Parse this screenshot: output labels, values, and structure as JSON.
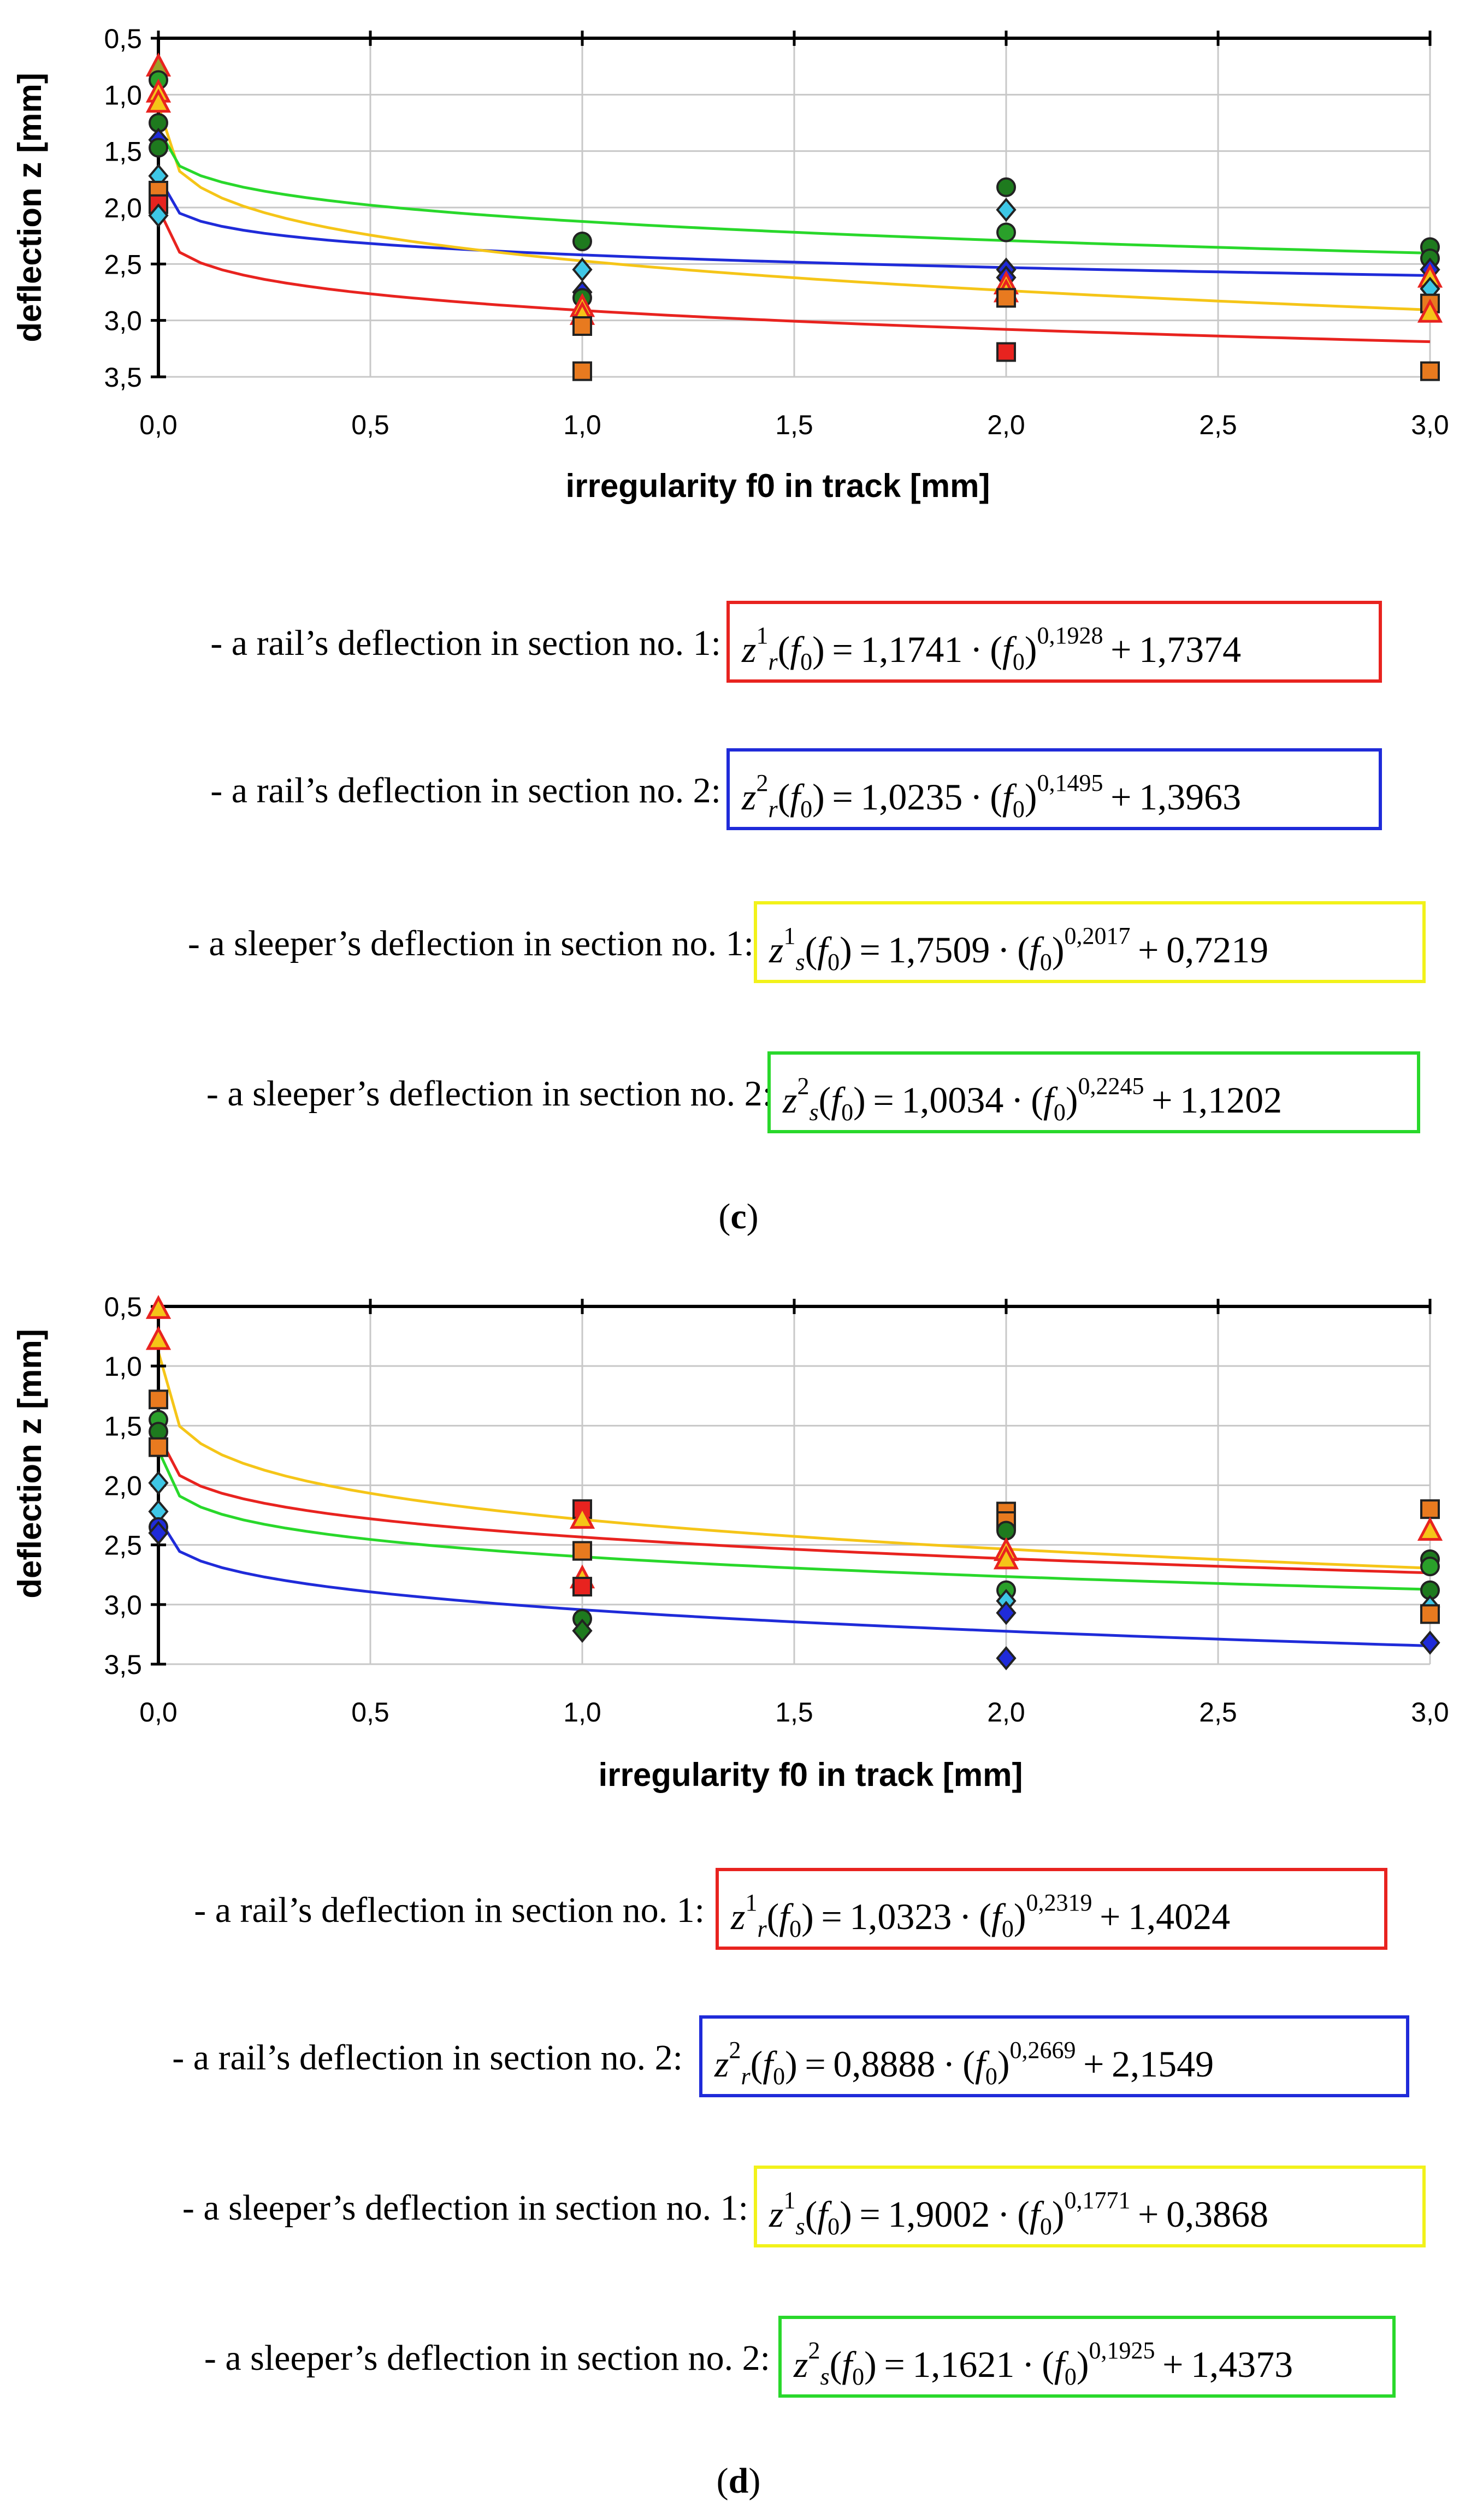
{
  "charts": [
    {
      "type": "scatter",
      "panel": "c",
      "xlabel": "irregularity f0 in track [mm]",
      "ylabel": "deflection z [mm]",
      "xlim": [
        0,
        3
      ],
      "ylim": [
        0.5,
        3.5
      ],
      "y_inverted": true,
      "xticks": [
        "0,0",
        "0,5",
        "1,0",
        "1,5",
        "2,0",
        "2,5",
        "3,0"
      ],
      "yticks": [
        "0,5",
        "1,0",
        "1,5",
        "2,0",
        "2,5",
        "3,0",
        "3,5"
      ],
      "curves": [
        {
          "name": "rail section 1",
          "color": "#e8231f",
          "a": 1.1741,
          "b": 0.1928,
          "c": 1.7374
        },
        {
          "name": "rail section 2",
          "color": "#1f2bd9",
          "a": 1.0235,
          "b": 0.1495,
          "c": 1.3963
        },
        {
          "name": "sleeper section 1",
          "color": "#f5c518",
          "a": 1.7509,
          "b": 0.2017,
          "c": 0.7219
        },
        {
          "name": "sleeper section 2",
          "color": "#29d82b",
          "a": 1.0034,
          "b": 0.2245,
          "c": 1.1202
        }
      ],
      "points": [
        {
          "shape": "triangle",
          "fill": "#9aa12a",
          "x": 0,
          "y": 0.75
        },
        {
          "shape": "circle",
          "fill": "#2aa02a",
          "x": 0,
          "y": 0.87
        },
        {
          "shape": "triangle",
          "fill": "#f5c518",
          "x": 0,
          "y": 0.98
        },
        {
          "shape": "triangle",
          "fill": "#f5c518",
          "x": 0,
          "y": 1.07
        },
        {
          "shape": "circle",
          "fill": "#1e7a1e",
          "x": 0,
          "y": 1.25
        },
        {
          "shape": "diamond",
          "fill": "#1f2bd9",
          "x": 0,
          "y": 1.4
        },
        {
          "shape": "circle",
          "fill": "#1e7a1e",
          "x": 0,
          "y": 1.47
        },
        {
          "shape": "diamond",
          "fill": "#3ec7e6",
          "x": 0,
          "y": 1.72
        },
        {
          "shape": "square",
          "fill": "#e87a1f",
          "x": 0,
          "y": 1.85
        },
        {
          "shape": "square",
          "fill": "#e8231f",
          "x": 0,
          "y": 1.97
        },
        {
          "shape": "diamond",
          "fill": "#3ec7e6",
          "x": 0,
          "y": 2.07
        },
        {
          "shape": "circle",
          "fill": "#1e7a1e",
          "x": 1,
          "y": 2.3
        },
        {
          "shape": "diamond",
          "fill": "#3ec7e6",
          "x": 1,
          "y": 2.55
        },
        {
          "shape": "diamond",
          "fill": "#1f2bd9",
          "x": 1,
          "y": 2.75
        },
        {
          "shape": "circle",
          "fill": "#1e7a1e",
          "x": 1,
          "y": 2.8
        },
        {
          "shape": "triangle",
          "fill": "#f5c518",
          "x": 1,
          "y": 2.88
        },
        {
          "shape": "triangle",
          "fill": "#f5c518",
          "x": 1,
          "y": 2.95
        },
        {
          "shape": "square",
          "fill": "#e87a1f",
          "x": 1,
          "y": 3.05
        },
        {
          "shape": "square",
          "fill": "#e87a1f",
          "x": 1,
          "y": 3.45
        },
        {
          "shape": "circle",
          "fill": "#1e7a1e",
          "x": 2,
          "y": 1.82
        },
        {
          "shape": "diamond",
          "fill": "#3ec7e6",
          "x": 2,
          "y": 2.02
        },
        {
          "shape": "circle",
          "fill": "#2aa02a",
          "x": 2,
          "y": 2.22
        },
        {
          "shape": "diamond",
          "fill": "#1f2bd9",
          "x": 2,
          "y": 2.55
        },
        {
          "shape": "diamond",
          "fill": "#1f2bd9",
          "x": 2,
          "y": 2.62
        },
        {
          "shape": "triangle",
          "fill": "#f5c518",
          "x": 2,
          "y": 2.68
        },
        {
          "shape": "triangle",
          "fill": "#f5c518",
          "x": 2,
          "y": 2.75
        },
        {
          "shape": "square",
          "fill": "#e87a1f",
          "x": 2,
          "y": 2.8
        },
        {
          "shape": "square",
          "fill": "#e8231f",
          "x": 2,
          "y": 3.28
        },
        {
          "shape": "circle",
          "fill": "#1e7a1e",
          "x": 3,
          "y": 2.35
        },
        {
          "shape": "circle",
          "fill": "#1e7a1e",
          "x": 3,
          "y": 2.45
        },
        {
          "shape": "diamond",
          "fill": "#1f2bd9",
          "x": 3,
          "y": 2.55
        },
        {
          "shape": "triangle",
          "fill": "#f5c518",
          "x": 3,
          "y": 2.62
        },
        {
          "shape": "diamond",
          "fill": "#3ec7e6",
          "x": 3,
          "y": 2.72
        },
        {
          "shape": "square",
          "fill": "#e87a1f",
          "x": 3,
          "y": 2.85
        },
        {
          "shape": "triangle",
          "fill": "#f5c518",
          "x": 3,
          "y": 2.93
        },
        {
          "shape": "square",
          "fill": "#e87a1f",
          "x": 3,
          "y": 3.45
        }
      ]
    },
    {
      "type": "scatter",
      "panel": "d",
      "xlabel": "irregularity f0 in track [mm]",
      "ylabel": "deflection z [mm]",
      "xlim": [
        0,
        3
      ],
      "ylim": [
        0.5,
        3.5
      ],
      "y_inverted": true,
      "xticks": [
        "0,0",
        "0,5",
        "1,0",
        "1,5",
        "2,0",
        "2,5",
        "3,0"
      ],
      "yticks": [
        "0,5",
        "1,0",
        "1,5",
        "2,0",
        "2,5",
        "3,0",
        "3,5"
      ],
      "curves": [
        {
          "name": "rail section 1",
          "color": "#e8231f",
          "a": 1.0323,
          "b": 0.2319,
          "c": 1.4024
        },
        {
          "name": "rail section 2",
          "color": "#1f2bd9",
          "a": 0.8888,
          "b": 0.2669,
          "c": 2.1549
        },
        {
          "name": "sleeper section 1",
          "color": "#f5c518",
          "a": 1.9002,
          "b": 0.1771,
          "c": 0.3868
        },
        {
          "name": "sleeper section 2",
          "color": "#29d82b",
          "a": 1.1621,
          "b": 0.1925,
          "c": 1.4373
        }
      ],
      "points": [
        {
          "shape": "triangle",
          "fill": "#f5c518",
          "x": 0,
          "y": 0.52
        },
        {
          "shape": "triangle",
          "fill": "#f5c518",
          "x": 0,
          "y": 0.78
        },
        {
          "shape": "square",
          "fill": "#e87a1f",
          "x": 0,
          "y": 1.28
        },
        {
          "shape": "circle",
          "fill": "#2aa02a",
          "x": 0,
          "y": 1.45
        },
        {
          "shape": "circle",
          "fill": "#1e7a1e",
          "x": 0,
          "y": 1.55
        },
        {
          "shape": "square",
          "fill": "#e87a1f",
          "x": 0,
          "y": 1.68
        },
        {
          "shape": "diamond",
          "fill": "#3ec7e6",
          "x": 0,
          "y": 1.98
        },
        {
          "shape": "diamond",
          "fill": "#3ec7e6",
          "x": 0,
          "y": 2.22
        },
        {
          "shape": "circle",
          "fill": "#1f2bd9",
          "x": 0,
          "y": 2.35
        },
        {
          "shape": "diamond",
          "fill": "#1f2bd9",
          "x": 0,
          "y": 2.4
        },
        {
          "shape": "square",
          "fill": "#e8231f",
          "x": 1,
          "y": 2.2
        },
        {
          "shape": "triangle",
          "fill": "#f5c518",
          "x": 1,
          "y": 2.28
        },
        {
          "shape": "square",
          "fill": "#e87a1f",
          "x": 1,
          "y": 2.55
        },
        {
          "shape": "triangle",
          "fill": "#f5c518",
          "x": 1,
          "y": 2.78
        },
        {
          "shape": "square",
          "fill": "#e8231f",
          "x": 1,
          "y": 2.85
        },
        {
          "shape": "circle",
          "fill": "#1e7a1e",
          "x": 1,
          "y": 3.12
        },
        {
          "shape": "diamond",
          "fill": "#1e7a1e",
          "x": 1,
          "y": 3.22
        },
        {
          "shape": "square",
          "fill": "#e87a1f",
          "x": 2,
          "y": 2.22
        },
        {
          "shape": "square",
          "fill": "#e87a1f",
          "x": 2,
          "y": 2.3
        },
        {
          "shape": "circle",
          "fill": "#1e7a1e",
          "x": 2,
          "y": 2.38
        },
        {
          "shape": "triangle",
          "fill": "#f5c518",
          "x": 2,
          "y": 2.55
        },
        {
          "shape": "triangle",
          "fill": "#f5c518",
          "x": 2,
          "y": 2.62
        },
        {
          "shape": "circle",
          "fill": "#2aa02a",
          "x": 2,
          "y": 2.88
        },
        {
          "shape": "diamond",
          "fill": "#3ec7e6",
          "x": 2,
          "y": 2.97
        },
        {
          "shape": "diamond",
          "fill": "#1f2bd9",
          "x": 2,
          "y": 3.07
        },
        {
          "shape": "diamond",
          "fill": "#1f2bd9",
          "x": 2,
          "y": 3.45
        },
        {
          "shape": "square",
          "fill": "#e87a1f",
          "x": 3,
          "y": 2.2
        },
        {
          "shape": "triangle",
          "fill": "#f5c518",
          "x": 3,
          "y": 2.38
        },
        {
          "shape": "circle",
          "fill": "#1e7a1e",
          "x": 3,
          "y": 2.62
        },
        {
          "shape": "circle",
          "fill": "#2aa02a",
          "x": 3,
          "y": 2.68
        },
        {
          "shape": "circle",
          "fill": "#1e7a1e",
          "x": 3,
          "y": 2.88
        },
        {
          "shape": "diamond",
          "fill": "#3ec7e6",
          "x": 3,
          "y": 3.02
        },
        {
          "shape": "square",
          "fill": "#e87a1f",
          "x": 3,
          "y": 3.08
        },
        {
          "shape": "diamond",
          "fill": "#1f2bd9",
          "x": 3,
          "y": 3.32
        }
      ]
    }
  ],
  "panels": [
    {
      "caption_open": "(",
      "caption_letter": "c",
      "caption_close": ")",
      "equations": [
        {
          "label": "- a rail’s deflection in section no. 1:",
          "box_color": "#e8231f",
          "var": "z",
          "sup": "1",
          "sub": "r",
          "arg": "f",
          "arg_sub": "0",
          "coef": "1,1741",
          "exp": "0,1928",
          "op": "+",
          "const": "1,7374"
        },
        {
          "label": "- a rail’s deflection in section no. 2:",
          "box_color": "#1f2bd9",
          "var": "z",
          "sup": "2",
          "sub": "r",
          "arg": "f",
          "arg_sub": "0",
          "coef": "1,0235",
          "exp": "0,1495",
          "op": "+",
          "const": "1,3963"
        },
        {
          "label": "- a sleeper’s deflection in section no. 1:",
          "box_color": "#f2f21a",
          "var": "z",
          "sup": "1",
          "sub": "s",
          "arg": "f",
          "arg_sub": "0",
          "coef": "1,7509",
          "exp": "0,2017",
          "op": "+",
          "const": "0,7219"
        },
        {
          "label": "- a sleeper’s deflection in section no. 2:",
          "box_color": "#29d82b",
          "var": "z",
          "sup": "2",
          "sub": "s",
          "arg": "f",
          "arg_sub": "0",
          "coef": "1,0034",
          "exp": "0,2245",
          "op": "+",
          "const": "1,1202"
        }
      ]
    },
    {
      "caption_open": "(",
      "caption_letter": "d",
      "caption_close": ")",
      "equations": [
        {
          "label": "- a rail’s deflection in section no. 1:",
          "box_color": "#e8231f",
          "var": "z",
          "sup": "1",
          "sub": "r",
          "arg": "f",
          "arg_sub": "0",
          "coef": "1,0323",
          "exp": "0,2319",
          "op": "+",
          "const": "1,4024"
        },
        {
          "label": "- a rail’s deflection in section no. 2:",
          "box_color": "#1f2bd9",
          "var": "z",
          "sup": "2",
          "sub": "r",
          "arg": "f",
          "arg_sub": "0",
          "coef": "0,8888",
          "exp": "0,2669",
          "op": "+",
          "const": "2,1549"
        },
        {
          "label": "- a sleeper’s deflection in section no. 1:",
          "box_color": "#f2f21a",
          "var": "z",
          "sup": "1",
          "sub": "s",
          "arg": "f",
          "arg_sub": "0",
          "coef": "1,9002",
          "exp": "0,1771",
          "op": "+",
          "const": "0,3868"
        },
        {
          "label": "- a sleeper’s deflection in section no. 2:",
          "box_color": "#29d82b",
          "var": "z",
          "sup": "2",
          "sub": "s",
          "arg": "f",
          "arg_sub": "0",
          "coef": "1,1621",
          "exp": "0,1925",
          "op": "+",
          "const": "1,4373"
        }
      ]
    }
  ]
}
